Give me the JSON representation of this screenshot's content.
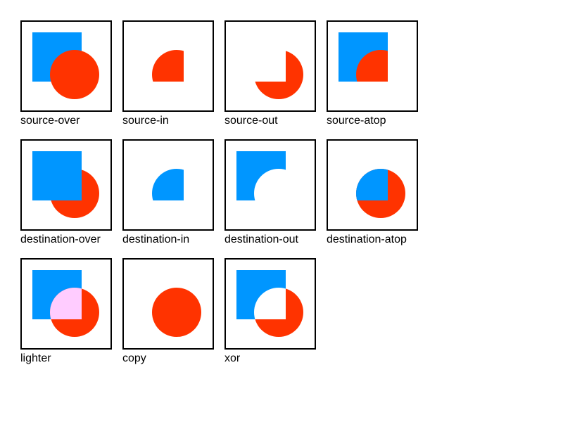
{
  "colors": {
    "square": "#0096ff",
    "circle": "#ff3300",
    "lighter_overlap": "#ffccff",
    "border": "#000000",
    "background": "#ffffff"
  },
  "examples": [
    {
      "label": "source-over"
    },
    {
      "label": "source-in"
    },
    {
      "label": "source-out"
    },
    {
      "label": "source-atop"
    },
    {
      "label": "destination-over"
    },
    {
      "label": "destination-in"
    },
    {
      "label": "destination-out"
    },
    {
      "label": "destination-atop"
    },
    {
      "label": "lighter"
    },
    {
      "label": "copy"
    },
    {
      "label": "xor"
    }
  ]
}
